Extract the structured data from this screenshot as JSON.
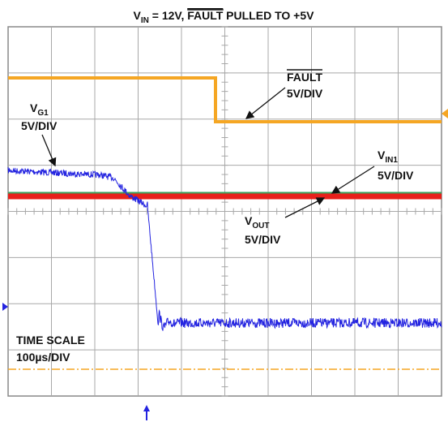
{
  "title": {
    "symbol": "V",
    "subscript": "IN",
    "middle": " = 12V, ",
    "overlined": "FAULT",
    "end": " PULLED TO +5V"
  },
  "labels": {
    "fault": {
      "name": "FAULT",
      "scale": "5V/DIV"
    },
    "vg1": {
      "symbol": "V",
      "subscript": "G1",
      "scale": "5V/DIV"
    },
    "vin1": {
      "symbol": "V",
      "subscript": "IN1",
      "scale": "5V/DIV"
    },
    "vout": {
      "symbol": "V",
      "subscript": "OUT",
      "scale": "5V/DIV"
    },
    "time": {
      "name": "TIME SCALE",
      "scale": "100µs/DIV"
    }
  }
}
